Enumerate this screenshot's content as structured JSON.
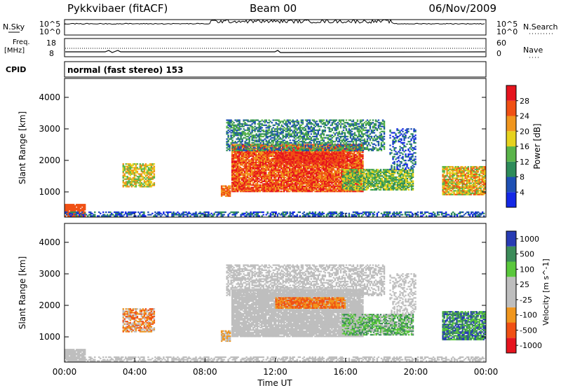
{
  "header": {
    "station": "Pykkvibaer (fitACF)",
    "beam": "Beam 00",
    "date": "06/Nov/2009"
  },
  "top_panel": {
    "nsky_label": "N.Sky",
    "nsearch_label": "N.Search",
    "left_ticks": [
      "10^5",
      "10^0"
    ],
    "right_ticks": [
      "10^5",
      "10^0"
    ],
    "freq_label_1": "Freq.",
    "freq_label_2": "[MHz]",
    "freq_ticks": [
      "18",
      "8"
    ],
    "nave_label": "Nave",
    "nave_ticks": [
      "60",
      "0"
    ],
    "cpid_label": "CPID",
    "cpid_text": "normal (fast stereo) 153"
  },
  "colors": {
    "power": [
      "#1428e6",
      "#1e50b4",
      "#2e8c5a",
      "#5ab44a",
      "#e6d21e",
      "#f0961e",
      "#f05014",
      "#e6141e"
    ],
    "velocity": [
      "#e6141e",
      "#f05014",
      "#f0961e",
      "#bebebe",
      "#bebebe",
      "#5ac83c",
      "#3c8c5a",
      "#283cb4"
    ]
  },
  "chart_data": [
    {
      "type": "heatmap",
      "ylabel": "Slant Range [km]",
      "xlabel": "",
      "yticks": [
        "1000",
        "2000",
        "3000",
        "4000"
      ],
      "ylim": [
        200,
        4600
      ],
      "colorbar_label": "Power [dB]",
      "colorbar_ticks": [
        "4",
        "8",
        "12",
        "16",
        "20",
        "24",
        "28"
      ],
      "colorbar_range": [
        0,
        32
      ]
    },
    {
      "type": "heatmap",
      "ylabel": "Slant Range [km]",
      "xlabel": "Time UT",
      "xticks": [
        "00:00",
        "04:00",
        "08:00",
        "12:00",
        "16:00",
        "20:00",
        "00:00"
      ],
      "xlim": [
        0,
        24
      ],
      "yticks": [
        "1000",
        "2000",
        "3000",
        "4000"
      ],
      "ylim": [
        200,
        4600
      ],
      "colorbar_label": "Velocity [m s^-1]",
      "colorbar_ticks": [
        "1000",
        "500",
        "100",
        "25",
        "-25",
        "-100",
        "-500",
        "-1000"
      ]
    }
  ]
}
